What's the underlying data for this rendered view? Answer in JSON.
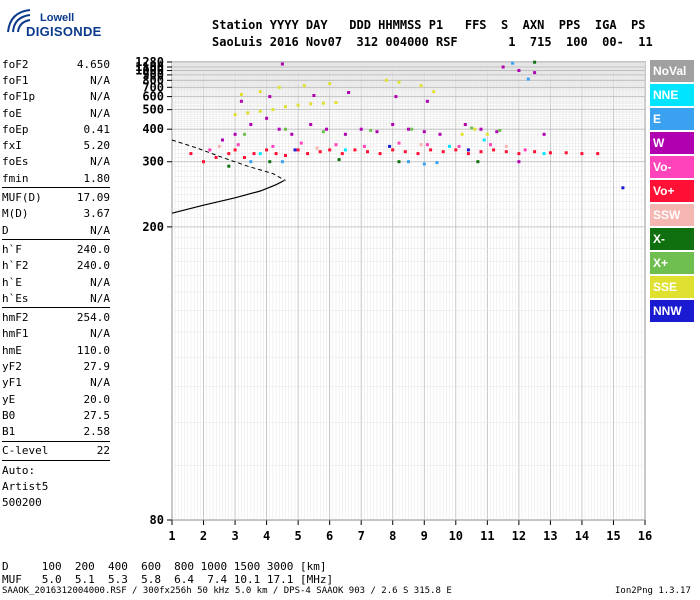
{
  "logo": {
    "top": "Lowell",
    "main": "DIGISONDE"
  },
  "header": {
    "line1": "Station YYYY DAY   DDD HHMMSS P1   FFS  S  AXN  PPS  IGA  PS",
    "line2": "SaoLuis 2016 Nov07  312 004000 RSF       1  715  100  00-  11"
  },
  "params": {
    "group1": [
      {
        "name": "foF2",
        "value": "4.650"
      },
      {
        "name": "foF1",
        "value": "N/A"
      },
      {
        "name": "foF1p",
        "value": "N/A"
      },
      {
        "name": "foE",
        "value": "N/A"
      },
      {
        "name": "foEp",
        "value": "0.41"
      },
      {
        "name": "fxI",
        "value": "5.20"
      },
      {
        "name": "foEs",
        "value": "N/A"
      },
      {
        "name": "fmin",
        "value": "1.80"
      }
    ],
    "group2": [
      {
        "name": "MUF(D)",
        "value": "17.09"
      },
      {
        "name": "M(D)",
        "value": "3.67"
      },
      {
        "name": "D",
        "value": "N/A"
      }
    ],
    "group3": [
      {
        "name": "h`F",
        "value": "240.0"
      },
      {
        "name": "h`F2",
        "value": "240.0"
      },
      {
        "name": "h`E",
        "value": "N/A"
      },
      {
        "name": "h`Es",
        "value": "N/A"
      }
    ],
    "group4": [
      {
        "name": "hmF2",
        "value": "254.0"
      },
      {
        "name": "hmF1",
        "value": "N/A"
      },
      {
        "name": "hmE",
        "value": "110.0"
      },
      {
        "name": "yF2",
        "value": "27.9"
      },
      {
        "name": "yF1",
        "value": "N/A"
      },
      {
        "name": "yE",
        "value": "20.0"
      },
      {
        "name": "B0",
        "value": "27.5"
      },
      {
        "name": "B1",
        "value": "2.58"
      }
    ],
    "group5": [
      {
        "name": "C-level",
        "value": "22"
      }
    ],
    "auto": [
      "Auto:",
      "Artist5",
      "500200"
    ]
  },
  "legend": [
    {
      "label": "NoVal",
      "color": "#a0a0a0"
    },
    {
      "label": "NNE",
      "color": "#00e5ff"
    },
    {
      "label": "E",
      "color": "#3aa0f0"
    },
    {
      "label": "W",
      "color": "#b000b0"
    },
    {
      "label": "Vo-",
      "color": "#ff44bb"
    },
    {
      "label": "Vo+",
      "color": "#ff1034"
    },
    {
      "label": "SSW",
      "color": "#f5b5b0"
    },
    {
      "label": "X-",
      "color": "#107010"
    },
    {
      "label": "X+",
      "color": "#6fbf50"
    },
    {
      "label": "SSE",
      "color": "#e0e030"
    },
    {
      "label": "NNW",
      "color": "#1a1ad0"
    }
  ],
  "bottom": {
    "d_line": "D     100  200  400  600  800 1000 1500 3000 [km]",
    "muf_line": "MUF   5.0  5.1  5.3  5.8  6.4  7.4 10.1 17.1 [MHz]"
  },
  "footer": {
    "left": "SAAOK_2016312004000.RSF / 300fx256h 50 kHz 5.0 km / DPS-4 SAAOK 903 / 2.6 S 315.8 E",
    "right": "Ion2Png 1.3.17"
  },
  "chart_data": {
    "type": "scatter",
    "title": "",
    "xlabel": "",
    "ylabel": "",
    "x_ticks": [
      1,
      2,
      3,
      4,
      5,
      6,
      7,
      8,
      9,
      10,
      11,
      12,
      13,
      14,
      15,
      16
    ],
    "y_ticks": [
      80,
      200,
      300,
      400,
      500,
      600,
      700,
      800,
      900,
      1000,
      1100,
      1280
    ],
    "xlim": [
      1,
      16
    ],
    "ylim": [
      80,
      1280
    ],
    "grid": true,
    "series": [
      {
        "name": "Vo+",
        "color": "#ff1034",
        "points": [
          [
            1.6,
            320
          ],
          [
            2.0,
            300
          ],
          [
            2.4,
            310
          ],
          [
            2.8,
            320
          ],
          [
            3.0,
            330
          ],
          [
            3.3,
            310
          ],
          [
            3.6,
            320
          ],
          [
            4.0,
            330
          ],
          [
            4.3,
            320
          ],
          [
            4.6,
            315
          ],
          [
            5.0,
            330
          ],
          [
            5.3,
            320
          ],
          [
            5.7,
            325
          ],
          [
            6.0,
            330
          ],
          [
            6.4,
            320
          ],
          [
            6.8,
            330
          ],
          [
            7.2,
            325
          ],
          [
            7.6,
            320
          ],
          [
            8.0,
            330
          ],
          [
            8.4,
            325
          ],
          [
            8.8,
            320
          ],
          [
            9.2,
            330
          ],
          [
            9.6,
            325
          ],
          [
            10.0,
            330
          ],
          [
            10.4,
            320
          ],
          [
            10.8,
            325
          ],
          [
            11.2,
            330
          ],
          [
            11.6,
            325
          ],
          [
            12.0,
            320
          ],
          [
            12.5,
            325
          ],
          [
            13.0,
            322
          ],
          [
            13.5,
            322
          ],
          [
            14.0,
            320
          ],
          [
            14.5,
            320
          ]
        ]
      },
      {
        "name": "SSE",
        "color": "#e0e030",
        "points": [
          [
            3.0,
            470
          ],
          [
            3.4,
            480
          ],
          [
            3.8,
            490
          ],
          [
            4.2,
            500
          ],
          [
            4.6,
            520
          ],
          [
            5.0,
            530
          ],
          [
            5.4,
            540
          ],
          [
            5.8,
            545
          ],
          [
            6.2,
            550
          ],
          [
            3.2,
            620
          ],
          [
            3.8,
            650
          ],
          [
            4.4,
            700
          ],
          [
            5.2,
            720
          ],
          [
            6.0,
            750
          ],
          [
            7.8,
            800
          ],
          [
            8.2,
            770
          ],
          [
            8.9,
            720
          ],
          [
            9.3,
            650
          ],
          [
            10.2,
            380
          ],
          [
            10.6,
            400
          ],
          [
            11.0,
            380
          ]
        ]
      },
      {
        "name": "W",
        "color": "#b000b0",
        "points": [
          [
            2.6,
            360
          ],
          [
            3.0,
            380
          ],
          [
            3.5,
            420
          ],
          [
            4.0,
            450
          ],
          [
            4.4,
            400
          ],
          [
            4.8,
            380
          ],
          [
            5.4,
            420
          ],
          [
            5.9,
            400
          ],
          [
            6.5,
            380
          ],
          [
            7.0,
            400
          ],
          [
            7.5,
            390
          ],
          [
            8.0,
            420
          ],
          [
            8.5,
            400
          ],
          [
            9.0,
            390
          ],
          [
            9.5,
            380
          ],
          [
            10.3,
            420
          ],
          [
            10.8,
            400
          ],
          [
            11.3,
            390
          ],
          [
            12.0,
            300
          ],
          [
            12.8,
            380
          ],
          [
            3.2,
            560
          ],
          [
            4.1,
            600
          ],
          [
            5.5,
            610
          ],
          [
            6.6,
            640
          ],
          [
            8.1,
            600
          ],
          [
            9.1,
            560
          ],
          [
            4.5,
            1200
          ],
          [
            11.5,
            1100
          ],
          [
            12.0,
            1000
          ],
          [
            12.5,
            950
          ]
        ]
      },
      {
        "name": "Vo-",
        "color": "#ff44bb",
        "points": [
          [
            2.2,
            330
          ],
          [
            3.1,
            345
          ],
          [
            4.2,
            340
          ],
          [
            5.1,
            350
          ],
          [
            6.2,
            345
          ],
          [
            7.1,
            340
          ],
          [
            8.2,
            350
          ],
          [
            9.1,
            345
          ],
          [
            10.1,
            340
          ],
          [
            11.1,
            345
          ],
          [
            12.2,
            330
          ]
        ]
      },
      {
        "name": "E",
        "color": "#3aa0f0",
        "points": [
          [
            3.5,
            300
          ],
          [
            4.5,
            300
          ],
          [
            8.5,
            300
          ],
          [
            9.0,
            295
          ],
          [
            9.4,
            298
          ],
          [
            11.8,
            1230
          ],
          [
            12.3,
            820
          ]
        ]
      },
      {
        "name": "X+",
        "color": "#6fbf50",
        "points": [
          [
            3.3,
            380
          ],
          [
            4.6,
            400
          ],
          [
            5.8,
            390
          ],
          [
            7.3,
            395
          ],
          [
            8.6,
            400
          ],
          [
            10.5,
            405
          ],
          [
            11.4,
            395
          ]
        ]
      },
      {
        "name": "X-",
        "color": "#107010",
        "points": [
          [
            2.8,
            290
          ],
          [
            4.1,
            300
          ],
          [
            6.3,
            305
          ],
          [
            8.2,
            300
          ],
          [
            10.7,
            300
          ],
          [
            12.5,
            1270
          ]
        ]
      },
      {
        "name": "NNE",
        "color": "#00e5ff",
        "points": [
          [
            3.8,
            320
          ],
          [
            6.5,
            330
          ],
          [
            9.8,
            340
          ],
          [
            10.9,
            360
          ],
          [
            12.8,
            320
          ]
        ]
      },
      {
        "name": "NNW",
        "color": "#1a1ad0",
        "points": [
          [
            4.9,
            330
          ],
          [
            7.9,
            340
          ],
          [
            10.4,
            330
          ],
          [
            15.3,
            250
          ]
        ]
      },
      {
        "name": "SSW",
        "color": "#f5b5b0",
        "points": [
          [
            2.5,
            340
          ],
          [
            5.6,
            335
          ],
          [
            8.9,
            345
          ],
          [
            11.6,
            340
          ]
        ]
      }
    ]
  }
}
